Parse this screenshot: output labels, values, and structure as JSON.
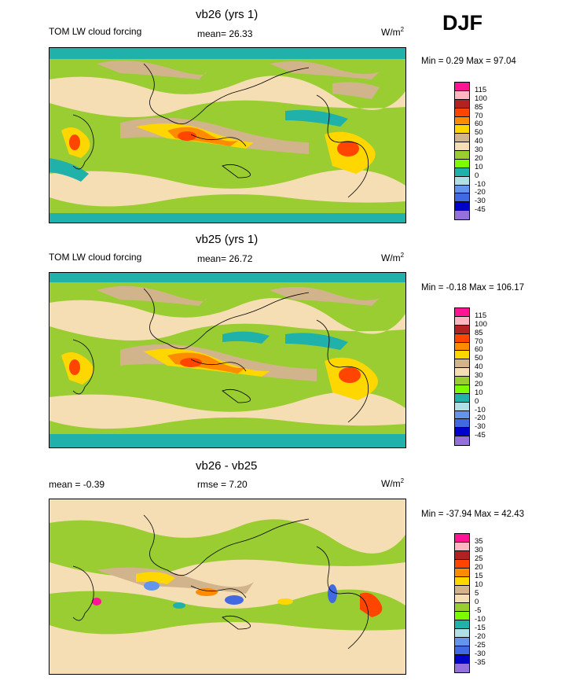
{
  "season": "DJF",
  "panels": [
    {
      "title": "vb26 (yrs 1)",
      "left_label": "TOM LW cloud forcing",
      "mean_label": "mean=",
      "mean_value": "26.33",
      "units": "W/m",
      "units_sup": "2",
      "minmax": "Min =   0.29 Max =  97.04",
      "colorbar_levels": [
        "115",
        "100",
        "85",
        "70",
        "60",
        "50",
        "40",
        "30",
        "20",
        "10",
        "0",
        "-10",
        "-20",
        "-30",
        "-45"
      ],
      "colors": [
        "#ff1493",
        "#ffb6c1",
        "#b22222",
        "#ff4500",
        "#ff8c00",
        "#ffd700",
        "#d2b48c",
        "#f5deb3",
        "#9acd32",
        "#7cfc00",
        "#20b2aa",
        "#b0e0e6",
        "#6495ed",
        "#4169e1",
        "#0000cd",
        "#9370db"
      ]
    },
    {
      "title": "vb25 (yrs 1)",
      "left_label": "TOM LW cloud forcing",
      "mean_label": "mean=",
      "mean_value": "26.72",
      "units": "W/m",
      "units_sup": "2",
      "minmax": "Min =  -0.18 Max = 106.17",
      "colorbar_levels": [
        "115",
        "100",
        "85",
        "70",
        "60",
        "50",
        "40",
        "30",
        "20",
        "10",
        "0",
        "-10",
        "-20",
        "-30",
        "-45"
      ],
      "colors": [
        "#ff1493",
        "#ffb6c1",
        "#b22222",
        "#ff4500",
        "#ff8c00",
        "#ffd700",
        "#d2b48c",
        "#f5deb3",
        "#9acd32",
        "#7cfc00",
        "#20b2aa",
        "#b0e0e6",
        "#6495ed",
        "#4169e1",
        "#0000cd",
        "#9370db"
      ]
    },
    {
      "title": "vb26 - vb25",
      "left_label": "mean =  -0.39",
      "mean_label": "rmse =",
      "mean_value": "7.20",
      "units": "W/m",
      "units_sup": "2",
      "minmax": "Min = -37.94 Max =  42.43",
      "colorbar_levels": [
        "35",
        "30",
        "25",
        "20",
        "15",
        "10",
        "5",
        "0",
        "-5",
        "-10",
        "-15",
        "-20",
        "-25",
        "-30",
        "-35"
      ],
      "colors": [
        "#ff1493",
        "#ffb6c1",
        "#b22222",
        "#ff4500",
        "#ff8c00",
        "#ffd700",
        "#d2b48c",
        "#f5deb3",
        "#9acd32",
        "#7cfc00",
        "#20b2aa",
        "#b0e0e6",
        "#6495ed",
        "#4169e1",
        "#0000cd",
        "#9370db"
      ]
    }
  ]
}
